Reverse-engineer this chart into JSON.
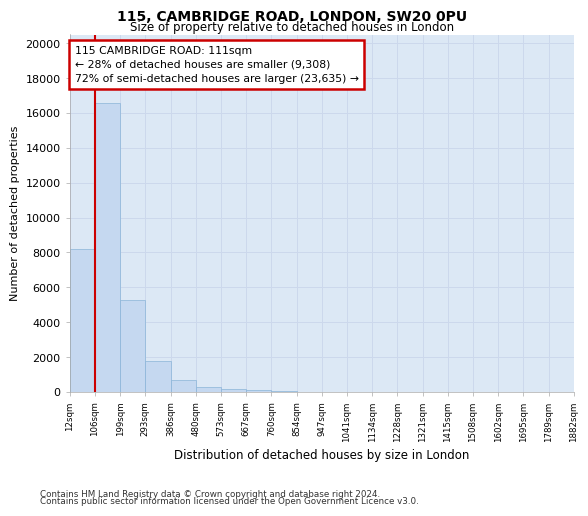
{
  "title_line1": "115, CAMBRIDGE ROAD, LONDON, SW20 0PU",
  "title_line2": "Size of property relative to detached houses in London",
  "xlabel": "Distribution of detached houses by size in London",
  "ylabel": "Number of detached properties",
  "bin_labels": [
    "12sqm",
    "106sqm",
    "199sqm",
    "293sqm",
    "386sqm",
    "480sqm",
    "573sqm",
    "667sqm",
    "760sqm",
    "854sqm",
    "947sqm",
    "1041sqm",
    "1134sqm",
    "1228sqm",
    "1321sqm",
    "1415sqm",
    "1508sqm",
    "1602sqm",
    "1695sqm",
    "1789sqm",
    "1882sqm"
  ],
  "bar_values": [
    8200,
    16600,
    5300,
    1800,
    700,
    280,
    165,
    100,
    50,
    0,
    0,
    0,
    0,
    0,
    0,
    0,
    0,
    0,
    0,
    0
  ],
  "bar_color": "#c5d8f0",
  "bar_edge_color": "#8ab4d8",
  "property_label": "115 CAMBRIDGE ROAD: 111sqm",
  "annotation_line1": "← 28% of detached houses are smaller (9,308)",
  "annotation_line2": "72% of semi-detached houses are larger (23,635) →",
  "vline_color": "#cc0000",
  "annotation_box_color": "#cc0000",
  "ylim": [
    0,
    20500
  ],
  "yticks": [
    0,
    2000,
    4000,
    6000,
    8000,
    10000,
    12000,
    14000,
    16000,
    18000,
    20000
  ],
  "grid_color": "#ccd8ec",
  "bg_color": "#dce8f5",
  "footnote1": "Contains HM Land Registry data © Crown copyright and database right 2024.",
  "footnote2": "Contains public sector information licensed under the Open Government Licence v3.0."
}
